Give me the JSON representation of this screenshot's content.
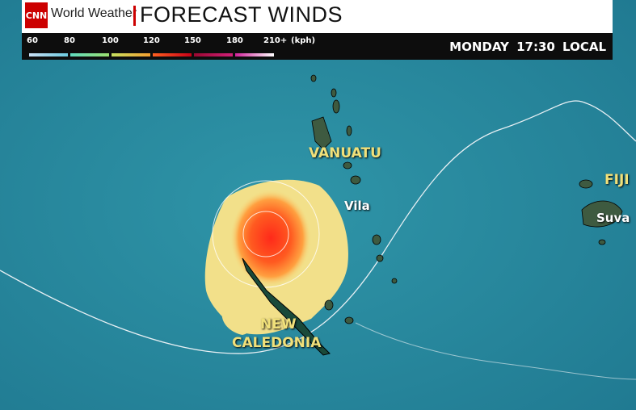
{
  "header": {
    "logo": "CNN",
    "brand": "World Weather",
    "title": "FORECAST WINDS",
    "time": "MONDAY  17:30 LOCAL"
  },
  "legend": {
    "ticks": [
      "60",
      "80",
      "100",
      "120",
      "150",
      "180",
      "210+",
      "(kph)"
    ],
    "colors": [
      [
        "#c8dff5",
        "#6ccbe0"
      ],
      [
        "#5fdcc0",
        "#9be070"
      ],
      [
        "#c5e060",
        "#f5a030"
      ],
      [
        "#ff6020",
        "#c80018"
      ],
      [
        "#9a0830",
        "#d0207a"
      ],
      [
        "#d0209a",
        "#ffffff"
      ]
    ]
  },
  "map": {
    "ocean_color": "#2a8ba0",
    "labels": {
      "vanuatu": "VANUATU",
      "fiji": "FIJI",
      "new_caledonia_1": "NEW",
      "new_caledonia_2": "CALEDONIA"
    },
    "cities": {
      "vila": "Vila",
      "suva": "Suva"
    }
  }
}
